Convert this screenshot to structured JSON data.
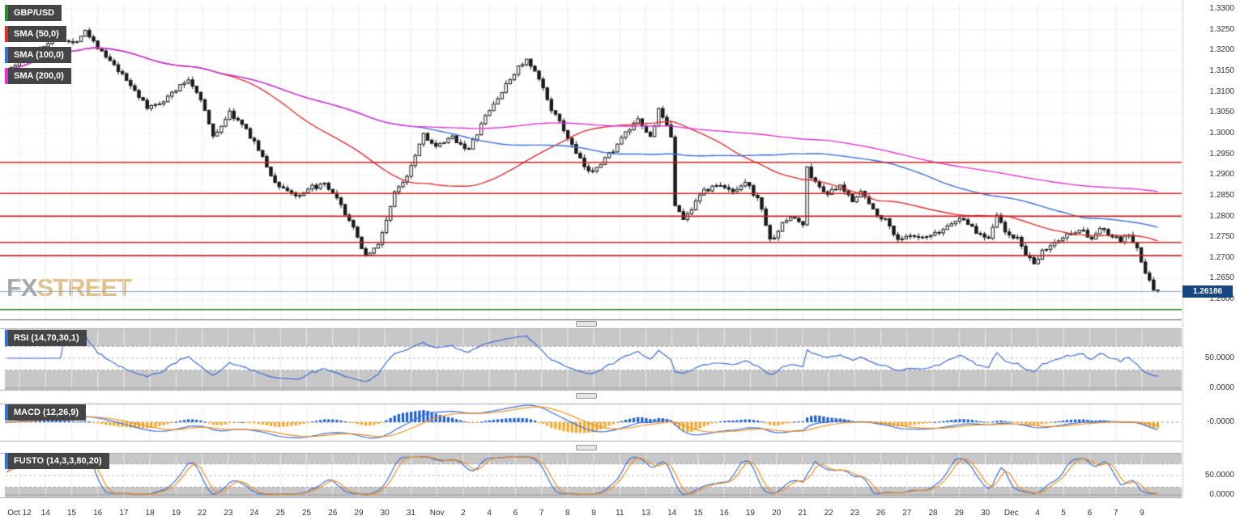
{
  "header": {
    "symbol": "GBP/USD",
    "symbol_tab_color": "#2a8f2a",
    "overlays": [
      {
        "label": "SMA (50,0)",
        "color": "#e03030"
      },
      {
        "label": "SMA (100,0)",
        "color": "#3a6fd8"
      },
      {
        "label": "SMA (200,0)",
        "color": "#e335d6"
      }
    ]
  },
  "watermark": {
    "fx": "FX",
    "street": "STREET"
  },
  "price_badge": {
    "text": "1.26186",
    "bg": "#16477c"
  },
  "axis": {
    "price_ticks": [
      "1.3300",
      "1.3250",
      "1.3200",
      "1.3150",
      "1.3100",
      "1.3050",
      "1.3000",
      "1.2950",
      "1.2900",
      "1.2850",
      "1.2800",
      "1.2750",
      "1.2700",
      "1.2650",
      "1.2600"
    ],
    "date_labels": [
      "Oct 12",
      "14",
      "15",
      "16",
      "17",
      "18",
      "19",
      "22",
      "23",
      "24",
      "25",
      "25",
      "26",
      "29",
      "30",
      "31",
      "Nov",
      "2",
      "4",
      "6",
      "7",
      "8",
      "9",
      "11",
      "13",
      "14",
      "15",
      "16",
      "19",
      "20",
      "21",
      "22",
      "23",
      "26",
      "27",
      "28",
      "29",
      "30",
      "Dec",
      "4",
      "5",
      "6",
      "7",
      "9"
    ]
  },
  "colors": {
    "up_candle": "#ffffff",
    "down_candle": "#1a1a1a",
    "grid": "#ececec",
    "hgrid": "#f2f2f2",
    "band_gray": "#c7c7c7",
    "level_red": "#cc2020",
    "level_green": "#1e7d1e",
    "last_price_line": "#8aa5c4",
    "sma50": "#e03030",
    "sma100": "#3a6fd8",
    "sma200": "#e335d6",
    "rsi_line": "#3a6fd8",
    "macd_line": "#3a6fd8",
    "macd_signal": "#f09020",
    "hist_pos": "#1f5fd0",
    "hist_neg": "#f5a623",
    "stoch_k": "#3a6fd8",
    "stoch_d": "#f09020"
  },
  "chart_data": {
    "type": "candlestick",
    "title": "GBP/USD",
    "y_axis": {
      "ticks": [
        1.33,
        1.325,
        1.32,
        1.315,
        1.31,
        1.305,
        1.3,
        1.295,
        1.29,
        1.285,
        1.28,
        1.275,
        1.27,
        1.265,
        1.26
      ],
      "tick_step": 0.005
    },
    "x_labels": [
      "Oct 12",
      "14",
      "15",
      "16",
      "17",
      "18",
      "19",
      "22",
      "23",
      "24",
      "25",
      "25",
      "26",
      "29",
      "30",
      "31",
      "Nov",
      "2",
      "4",
      "6",
      "7",
      "8",
      "9",
      "11",
      "13",
      "14",
      "15",
      "16",
      "19",
      "20",
      "21",
      "22",
      "23",
      "26",
      "27",
      "28",
      "29",
      "30",
      "Dec",
      "4",
      "5",
      "6",
      "7",
      "9"
    ],
    "candle_count": 280,
    "noise_amp": 0.0011,
    "last_price": 1.26186,
    "price_path": [
      [
        0,
        1.315
      ],
      [
        6,
        1.319
      ],
      [
        12,
        1.3235
      ],
      [
        16,
        1.3215
      ],
      [
        19,
        1.325
      ],
      [
        23,
        1.3195
      ],
      [
        27,
        1.315
      ],
      [
        31,
        1.3105
      ],
      [
        34,
        1.306
      ],
      [
        38,
        1.308
      ],
      [
        44,
        1.313
      ],
      [
        47,
        1.3085
      ],
      [
        50,
        1.299
      ],
      [
        54,
        1.305
      ],
      [
        57,
        1.302
      ],
      [
        60,
        1.298
      ],
      [
        65,
        1.288
      ],
      [
        71,
        1.2845
      ],
      [
        74,
        1.287
      ],
      [
        77,
        1.2875
      ],
      [
        80,
        1.284
      ],
      [
        83,
        1.279
      ],
      [
        87,
        1.2705
      ],
      [
        90,
        1.273
      ],
      [
        94,
        1.2855
      ],
      [
        97,
        1.29
      ],
      [
        101,
        1.3
      ],
      [
        104,
        1.2965
      ],
      [
        108,
        1.299
      ],
      [
        112,
        1.296
      ],
      [
        116,
        1.304
      ],
      [
        120,
        1.31
      ],
      [
        124,
        1.316
      ],
      [
        126,
        1.3175
      ],
      [
        129,
        1.313
      ],
      [
        132,
        1.306
      ],
      [
        136,
        1.299
      ],
      [
        138,
        1.295
      ],
      [
        141,
        1.2905
      ],
      [
        144,
        1.293
      ],
      [
        147,
        1.296
      ],
      [
        150,
        1.3
      ],
      [
        153,
        1.303
      ],
      [
        156,
        1.299
      ],
      [
        158,
        1.3055
      ],
      [
        161,
        1.2995
      ],
      [
        162,
        1.283
      ],
      [
        164,
        1.279
      ],
      [
        166,
        1.282
      ],
      [
        168,
        1.2855
      ],
      [
        172,
        1.2875
      ],
      [
        176,
        1.286
      ],
      [
        179,
        1.2885
      ],
      [
        182,
        1.284
      ],
      [
        183,
        1.282
      ],
      [
        185,
        1.274
      ],
      [
        188,
        1.278
      ],
      [
        190,
        1.28
      ],
      [
        193,
        1.278
      ],
      [
        194,
        1.2915
      ],
      [
        196,
        1.288
      ],
      [
        199,
        1.2855
      ],
      [
        202,
        1.287
      ],
      [
        205,
        1.284
      ],
      [
        207,
        1.286
      ],
      [
        210,
        1.2815
      ],
      [
        213,
        1.279
      ],
      [
        216,
        1.2745
      ],
      [
        219,
        1.275
      ],
      [
        222,
        1.2745
      ],
      [
        226,
        1.276
      ],
      [
        229,
        1.2785
      ],
      [
        232,
        1.2795
      ],
      [
        235,
        1.276
      ],
      [
        238,
        1.275
      ],
      [
        240,
        1.2805
      ],
      [
        242,
        1.276
      ],
      [
        245,
        1.2745
      ],
      [
        247,
        1.271
      ],
      [
        249,
        1.268
      ],
      [
        251,
        1.2715
      ],
      [
        254,
        1.2735
      ],
      [
        257,
        1.2755
      ],
      [
        260,
        1.277
      ],
      [
        263,
        1.2745
      ],
      [
        265,
        1.277
      ],
      [
        268,
        1.275
      ],
      [
        270,
        1.274
      ],
      [
        272,
        1.2755
      ],
      [
        274,
        1.272
      ],
      [
        276,
        1.266
      ],
      [
        278,
        1.2625
      ],
      [
        279,
        1.26186
      ]
    ],
    "horizontal_levels": [
      {
        "price": 1.293,
        "color": "#cc2020"
      },
      {
        "price": 1.2855,
        "color": "#cc2020"
      },
      {
        "price": 1.28,
        "color": "#cc2020"
      },
      {
        "price": 1.2737,
        "color": "#cc2020"
      },
      {
        "price": 1.2705,
        "color": "#cc2020"
      },
      {
        "price": 1.2575,
        "color": "#1e7d1e"
      }
    ],
    "overlays": [
      {
        "name": "SMA50",
        "period": 50,
        "color": "#e03030"
      },
      {
        "name": "SMA100",
        "period": 100,
        "color": "#3a6fd8"
      },
      {
        "name": "SMA200",
        "period": 200,
        "color": "#e335d6"
      }
    ],
    "indicators": [
      {
        "name": "RSI",
        "label": "RSI (14,70,30,1)",
        "period": 14,
        "bands": [
          70,
          30
        ],
        "scale_ticks": [
          {
            "v": 50,
            "label": "50.0000"
          },
          {
            "v": 0,
            "label": "0.0000"
          }
        ]
      },
      {
        "name": "MACD",
        "label": "MACD (12,26,9)",
        "fast": 12,
        "slow": 26,
        "signal": 9,
        "scale_ticks": [
          {
            "v": 0,
            "label": "-0.0000"
          }
        ]
      },
      {
        "name": "FUSTO",
        "label": "FUSTO (14,3,3,80,20)",
        "k": 14,
        "slow": 3,
        "d": 3,
        "bands": [
          80,
          20
        ],
        "scale_ticks": [
          {
            "v": 50,
            "label": "50.0000"
          },
          {
            "v": 0,
            "label": "0.0000"
          }
        ]
      }
    ]
  }
}
